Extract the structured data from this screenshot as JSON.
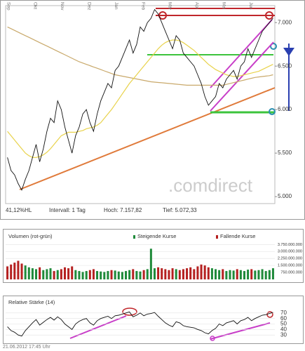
{
  "chart_data": [
    {
      "type": "line",
      "x_labels": [
        "Sep",
        "Okt",
        "Nov",
        "Dez",
        "Jan",
        "Feb",
        "Mär",
        "Apr",
        "Mai",
        "Jun"
      ],
      "annotations": [
        "41,12%HL",
        "Intervall: 1 Tag",
        "Hoch: 7.157,82",
        "Tief: 5.072,33"
      ],
      "watermark": ".comdirect",
      "ylim": [
        4920,
        7195
      ],
      "yticks": [
        {
          "value": 5000,
          "label": "5.000"
        },
        {
          "value": 5500,
          "label": "5.500"
        },
        {
          "value": 6000,
          "label": "6.000"
        },
        {
          "value": 6500,
          "label": "6.500"
        },
        {
          "value": 7000,
          "label": "7.000"
        }
      ],
      "grid": false,
      "series": [
        {
          "color": "#c9a96b",
          "values": [
            6950,
            6930,
            6910,
            6890,
            6870,
            6850,
            6830,
            6810,
            6790,
            6770,
            6750,
            6730,
            6710,
            6690,
            6670,
            6650,
            6630,
            6610,
            6590,
            6570,
            6550,
            6535,
            6520,
            6505,
            6490,
            6475,
            6460,
            6445,
            6430,
            6415,
            6400,
            6392,
            6384,
            6376,
            6368,
            6360,
            6352,
            6344,
            6336,
            6328,
            6320,
            6316,
            6312,
            6308,
            6304,
            6300,
            6296,
            6292,
            6288,
            6284,
            6280,
            6280,
            6280,
            6280,
            6280,
            6280,
            6280,
            6280,
            6280,
            6280,
            6280,
            6290,
            6300,
            6310,
            6320,
            6330,
            6340,
            6350,
            6360,
            6370,
            6375,
            6380,
            6385,
            6390,
            6400
          ]
        },
        {
          "color": "#e8d24a",
          "values": [
            5750,
            5700,
            5650,
            5600,
            5550,
            5500,
            5470,
            5450,
            5450,
            5460,
            5480,
            5510,
            5550,
            5600,
            5650,
            5700,
            5720,
            5740,
            5740,
            5740,
            5750,
            5760,
            5780,
            5790,
            5800,
            5820,
            5850,
            5900,
            5950,
            6000,
            6060,
            6120,
            6180,
            6240,
            6300,
            6350,
            6400,
            6450,
            6500,
            6550,
            6600,
            6650,
            6700,
            6740,
            6770,
            6790,
            6800,
            6800,
            6790,
            6770,
            6740,
            6710,
            6680,
            6640,
            6600,
            6560,
            6520,
            6490,
            6460,
            6440,
            6420,
            6400,
            6390,
            6380,
            6380,
            6390,
            6400,
            6410,
            6420,
            6430,
            6440,
            6460,
            6480,
            6500,
            6520
          ]
        },
        {
          "color": "#111111",
          "values": [
            5450,
            5300,
            5250,
            5150,
            5075,
            5200,
            5300,
            5450,
            5600,
            5400,
            5550,
            5750,
            5900,
            5850,
            6100,
            6000,
            5800,
            5650,
            5500,
            5700,
            5800,
            5950,
            6000,
            5850,
            5750,
            5950,
            6100,
            6200,
            6300,
            6250,
            6450,
            6500,
            6600,
            6700,
            6800,
            6650,
            6750,
            6950,
            6900,
            7000,
            7050,
            7150,
            7100,
            7000,
            6900,
            6800,
            6700,
            6850,
            6800,
            6650,
            6600,
            6550,
            6500,
            6400,
            6300,
            6150,
            6050,
            6100,
            6150,
            6300,
            6250,
            6350,
            6400,
            6450,
            6350,
            6500,
            6550,
            6700,
            6600,
            6700,
            6800,
            6900,
            6950,
            7000,
            7050
          ]
        }
      ]
    },
    {
      "type": "bar",
      "title": "Volumen (rot-grün)",
      "ylim": [
        0,
        4000000000
      ],
      "yticks": [
        {
          "value": 750000000,
          "label": "750.000.000"
        },
        {
          "value": 1500000000,
          "label": "1.500.000.000"
        },
        {
          "value": 2250000000,
          "label": "2.250.000.000"
        },
        {
          "value": 3000000000,
          "label": "3.000.000.000"
        },
        {
          "value": 3750000000,
          "label": "3.750.000.000"
        }
      ],
      "grid": true,
      "series": [
        {
          "name": "Steigende Kurse",
          "color": "#1f8a3a",
          "values": [
            null,
            null,
            null,
            null,
            null,
            1500000000,
            1300000000,
            1200000000,
            1100000000,
            null,
            1000000000,
            1100000000,
            1200000000,
            null,
            1000000000,
            null,
            null,
            null,
            null,
            1000000000,
            900000000,
            800000000,
            900000000,
            null,
            null,
            900000000,
            850000000,
            800000000,
            900000000,
            null,
            950000000,
            850000000,
            800000000,
            900000000,
            1000000000,
            null,
            900000000,
            850000000,
            null,
            1100000000,
            3300000000,
            1200000000,
            null,
            null,
            null,
            null,
            null,
            1100000000,
            null,
            null,
            null,
            null,
            null,
            null,
            null,
            null,
            null,
            1200000000,
            1100000000,
            1000000000,
            null,
            900000000,
            1000000000,
            950000000,
            null,
            1000000000,
            900000000,
            1050000000,
            null,
            950000000,
            1000000000,
            1100000000,
            900000000,
            1000000000,
            1200000000
          ]
        },
        {
          "name": "Fallende Kurse",
          "color": "#b52020",
          "values": [
            1400000000,
            1600000000,
            1800000000,
            2000000000,
            1700000000,
            null,
            null,
            null,
            null,
            1300000000,
            null,
            null,
            null,
            900000000,
            null,
            1100000000,
            1300000000,
            1200000000,
            1400000000,
            null,
            null,
            null,
            null,
            1000000000,
            1100000000,
            null,
            null,
            null,
            null,
            1000000000,
            null,
            null,
            null,
            null,
            null,
            1100000000,
            null,
            null,
            1000000000,
            null,
            null,
            null,
            1300000000,
            1200000000,
            1100000000,
            1000000000,
            1200000000,
            null,
            1000000000,
            1100000000,
            1200000000,
            1300000000,
            1100000000,
            1400000000,
            1600000000,
            1500000000,
            1300000000,
            null,
            null,
            null,
            1100000000,
            null,
            null,
            null,
            1100000000,
            null,
            null,
            null,
            1100000000,
            null,
            null,
            null,
            null,
            null,
            null
          ]
        }
      ]
    },
    {
      "type": "line",
      "title": "Relative Stärke (14)",
      "annotations": [
        "21.06.2012 17:45 Uhr"
      ],
      "ylim": [
        20,
        80
      ],
      "yticks": [
        30,
        40,
        50,
        60,
        70
      ],
      "grid": true,
      "series": [
        {
          "color": "#111111",
          "values": [
            45,
            38,
            35,
            30,
            28,
            38,
            45,
            52,
            58,
            48,
            53,
            58,
            62,
            57,
            63,
            58,
            50,
            45,
            40,
            50,
            55,
            58,
            60,
            52,
            48,
            56,
            60,
            62,
            64,
            60,
            65,
            66,
            68,
            70,
            72,
            63,
            66,
            70,
            65,
            68,
            69,
            71,
            64,
            58,
            52,
            48,
            45,
            54,
            52,
            47,
            45,
            44,
            43,
            40,
            38,
            34,
            32,
            38,
            42,
            50,
            47,
            52,
            54,
            56,
            50,
            56,
            58,
            62,
            56,
            60,
            63,
            66,
            67,
            69,
            71
          ]
        }
      ]
    }
  ]
}
